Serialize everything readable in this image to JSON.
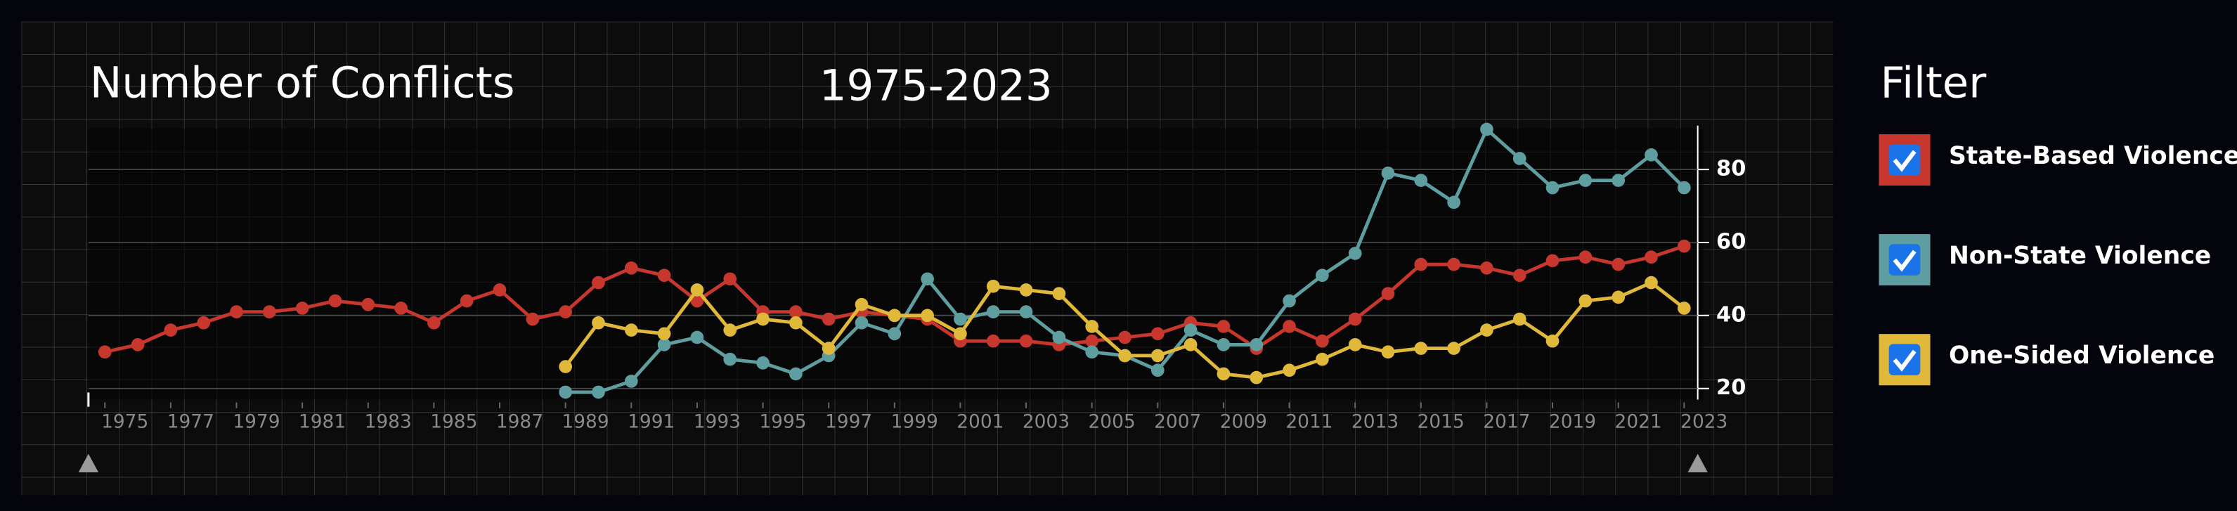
{
  "chart_data": {
    "type": "line",
    "title": "Number of Conflicts",
    "subtitle": "1975-2023",
    "legend_title": "Filter",
    "x": [
      1975,
      1976,
      1977,
      1978,
      1979,
      1980,
      1981,
      1982,
      1983,
      1984,
      1985,
      1986,
      1987,
      1988,
      1989,
      1990,
      1991,
      1992,
      1993,
      1994,
      1995,
      1996,
      1997,
      1998,
      1999,
      2000,
      2001,
      2002,
      2003,
      2004,
      2005,
      2006,
      2007,
      2008,
      2009,
      2010,
      2011,
      2012,
      2013,
      2014,
      2015,
      2016,
      2017,
      2018,
      2019,
      2020,
      2021,
      2022,
      2023
    ],
    "xlim": [
      1974.5,
      2023.5
    ],
    "xticks": [
      1975,
      1977,
      1979,
      1981,
      1983,
      1985,
      1987,
      1989,
      1991,
      1993,
      1995,
      1997,
      1999,
      2001,
      2003,
      2005,
      2007,
      2009,
      2011,
      2013,
      2015,
      2017,
      2019,
      2021,
      2023
    ],
    "ylim": [
      15,
      92
    ],
    "yticks": [
      20,
      40,
      60,
      80
    ],
    "grid": true,
    "series": [
      {
        "name": "State-Based Violence",
        "color": "#c8372d",
        "values": [
          30,
          32,
          36,
          38,
          41,
          41,
          42,
          44,
          43,
          42,
          38,
          44,
          47,
          39,
          41,
          49,
          53,
          51,
          44,
          50,
          41,
          41,
          39,
          41,
          40,
          39,
          33,
          33,
          33,
          32,
          33,
          34,
          35,
          38,
          37,
          31,
          37,
          33,
          39,
          46,
          54,
          54,
          53,
          51,
          55,
          56,
          54,
          56,
          59
        ]
      },
      {
        "name": "Non-State Violence",
        "color": "#5f9ea0",
        "values": [
          null,
          null,
          null,
          null,
          null,
          null,
          null,
          null,
          null,
          null,
          null,
          null,
          null,
          null,
          19,
          19,
          22,
          32,
          34,
          28,
          27,
          24,
          29,
          38,
          35,
          50,
          39,
          41,
          41,
          34,
          30,
          29,
          25,
          36,
          32,
          32,
          44,
          51,
          57,
          79,
          77,
          71,
          91,
          83,
          75,
          77,
          77,
          84,
          75
        ]
      },
      {
        "name": "One-Sided Violence",
        "color": "#e0b83a",
        "values": [
          null,
          null,
          null,
          null,
          null,
          null,
          null,
          null,
          null,
          null,
          null,
          null,
          null,
          null,
          26,
          38,
          36,
          35,
          47,
          36,
          39,
          38,
          31,
          43,
          40,
          40,
          35,
          48,
          47,
          46,
          37,
          29,
          29,
          32,
          24,
          23,
          25,
          28,
          32,
          30,
          31,
          31,
          36,
          39,
          33,
          44,
          45,
          49,
          42
        ]
      }
    ]
  }
}
